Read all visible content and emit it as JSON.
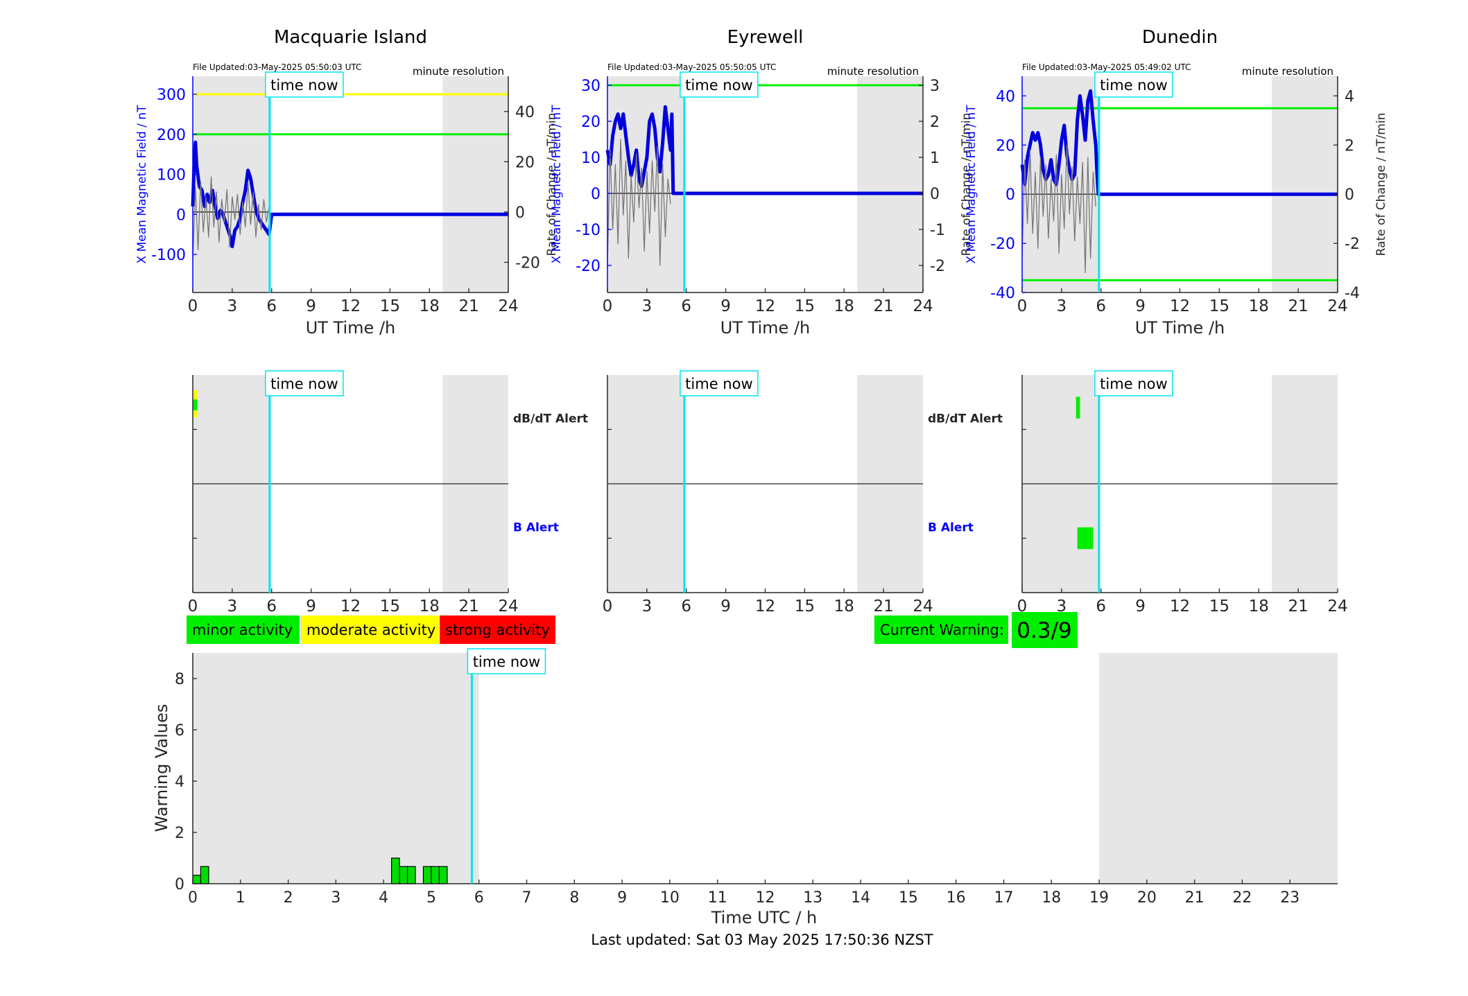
{
  "chart_data": [
    {
      "type": "line",
      "title": "Macquarie Island",
      "file_updated": "File Updated:03-May-2025 05:50:03 UTC",
      "resolution": "minute resolution",
      "xlabel": "UT Time /h",
      "ylabel_left": "X Mean Magnetic Field / nT",
      "ylabel_right": "Rate of Change / nT/min",
      "xlim": [
        0,
        24
      ],
      "xticks": [
        0,
        3,
        6,
        9,
        12,
        15,
        18,
        21,
        24
      ],
      "ylim_left": [
        -195,
        345
      ],
      "yticks_left": [
        -100,
        0,
        100,
        200,
        300
      ],
      "ylim_right": [
        -32,
        54
      ],
      "yticks_right": [
        -20,
        0,
        20,
        40
      ],
      "thresholds": [
        {
          "value": 300,
          "color": "#ffff00"
        },
        {
          "value": 200,
          "color": "#00ee00"
        }
      ],
      "night_shading": [
        [
          0,
          5.85
        ],
        [
          19,
          24
        ]
      ],
      "time_now": 5.85,
      "time_now_label": "time now",
      "series": [
        {
          "axis": "left",
          "color": "#0000dd",
          "x": [
            0,
            0.1,
            0.2,
            0.3,
            0.5,
            0.7,
            0.9,
            1.1,
            1.3,
            1.5,
            1.7,
            1.9,
            2.1,
            2.3,
            2.5,
            2.7,
            2.9,
            3.0,
            3.2,
            3.4,
            3.6,
            3.8,
            4.0,
            4.2,
            4.4,
            4.6,
            4.8,
            5.0,
            5.2,
            5.4,
            5.6,
            5.8,
            6.0,
            24
          ],
          "y": [
            20,
            120,
            180,
            120,
            70,
            60,
            20,
            50,
            30,
            60,
            20,
            -10,
            10,
            0,
            -20,
            -40,
            -60,
            -80,
            -40,
            -30,
            -10,
            30,
            60,
            110,
            90,
            50,
            10,
            -10,
            -20,
            -30,
            -40,
            -50,
            0,
            0
          ]
        },
        {
          "axis": "right",
          "color": "#777777",
          "x": [
            0,
            0.2,
            0.4,
            0.6,
            0.8,
            1.0,
            1.2,
            1.4,
            1.6,
            1.8,
            2.0,
            2.2,
            2.4,
            2.6,
            2.8,
            3.0,
            3.2,
            3.4,
            3.6,
            3.8,
            4.0,
            4.2,
            4.4,
            4.6,
            4.8,
            5.0,
            5.2,
            5.4,
            5.6,
            5.8
          ],
          "y": [
            -20,
            10,
            -15,
            12,
            -8,
            6,
            -10,
            14,
            -6,
            8,
            -12,
            5,
            -4,
            9,
            -14,
            6,
            -3,
            7,
            -9,
            4,
            -6,
            12,
            -5,
            8,
            -10,
            3,
            -7,
            5,
            -4,
            2
          ]
        }
      ]
    },
    {
      "type": "line",
      "title": "Eyrewell",
      "file_updated": "File Updated:03-May-2025 05:50:05 UTC",
      "resolution": "minute resolution",
      "xlabel": "UT Time /h",
      "ylabel_left": "X Mean Magnetic Field / nT",
      "ylabel_right": "Rate of Change / nT/min",
      "xlim": [
        0,
        24
      ],
      "xticks": [
        0,
        3,
        6,
        9,
        12,
        15,
        18,
        21,
        24
      ],
      "ylim_left": [
        -27.5,
        32.5
      ],
      "yticks_left": [
        -20,
        -10,
        0,
        10,
        20,
        30
      ],
      "ylim_right": [
        -2.75,
        3.25
      ],
      "yticks_right": [
        -2,
        -1,
        0,
        1,
        2,
        3
      ],
      "thresholds": [
        {
          "value": 30,
          "color": "#00ee00"
        }
      ],
      "night_shading": [
        [
          0,
          5.85
        ],
        [
          19,
          24
        ]
      ],
      "time_now": 5.85,
      "time_now_label": "time now",
      "series": [
        {
          "axis": "left",
          "color": "#0000dd",
          "x": [
            0,
            0.2,
            0.4,
            0.6,
            0.8,
            1.0,
            1.2,
            1.4,
            1.6,
            1.8,
            2.0,
            2.2,
            2.4,
            2.6,
            2.8,
            3.0,
            3.2,
            3.4,
            3.6,
            3.8,
            4.0,
            4.2,
            4.4,
            4.6,
            4.8,
            4.9,
            5.0,
            24
          ],
          "y": [
            12,
            8,
            16,
            20,
            22,
            18,
            22,
            16,
            10,
            5,
            8,
            12,
            4,
            2,
            6,
            10,
            20,
            22,
            18,
            10,
            6,
            14,
            24,
            18,
            12,
            22,
            0,
            0
          ]
        },
        {
          "axis": "right",
          "color": "#777777",
          "x": [
            0,
            0.2,
            0.4,
            0.6,
            0.8,
            1.0,
            1.2,
            1.4,
            1.6,
            1.8,
            2.0,
            2.2,
            2.4,
            2.6,
            2.8,
            3.0,
            3.2,
            3.4,
            3.6,
            3.8,
            4.0,
            4.2,
            4.4,
            4.6,
            4.8
          ],
          "y": [
            -2,
            1.2,
            -1,
            0.8,
            -1.4,
            1.5,
            -0.6,
            0.9,
            -1.8,
            0.5,
            -0.8,
            1.1,
            -0.4,
            0.7,
            -1.6,
            0.6,
            -1.1,
            0.9,
            -0.5,
            1.3,
            -2,
            0.8,
            -1.2,
            0.4,
            -0.3
          ]
        }
      ]
    },
    {
      "type": "line",
      "title": "Dunedin",
      "file_updated": "File Updated:03-May-2025 05:49:02 UTC",
      "resolution": "minute resolution",
      "xlabel": "UT Time /h",
      "ylabel_left": "X Mean Magnetic Field / nT",
      "ylabel_right": "Rate of Change / nT/min",
      "xlim": [
        0,
        24
      ],
      "xticks": [
        0,
        3,
        6,
        9,
        12,
        15,
        18,
        21,
        24
      ],
      "ylim_left": [
        -40,
        48
      ],
      "yticks_left": [
        -40,
        -20,
        0,
        20,
        40
      ],
      "ylim_right": [
        -4,
        4.8
      ],
      "yticks_right": [
        -4,
        -2,
        0,
        2,
        4
      ],
      "thresholds": [
        {
          "value": 35,
          "color": "#00ee00"
        },
        {
          "value": -35,
          "color": "#00ee00"
        }
      ],
      "night_shading": [
        [
          0,
          5.85
        ],
        [
          19,
          24
        ]
      ],
      "time_now": 5.85,
      "time_now_label": "time now",
      "series": [
        {
          "axis": "left",
          "color": "#0000dd",
          "x": [
            0,
            0.2,
            0.4,
            0.6,
            0.8,
            1.0,
            1.2,
            1.4,
            1.6,
            1.8,
            2.0,
            2.2,
            2.4,
            2.6,
            2.8,
            3.0,
            3.2,
            3.4,
            3.6,
            3.8,
            4.0,
            4.2,
            4.4,
            4.6,
            4.8,
            5.0,
            5.2,
            5.4,
            5.6,
            5.7,
            5.8,
            24
          ],
          "y": [
            12,
            4,
            15,
            20,
            25,
            22,
            25,
            20,
            10,
            6,
            8,
            14,
            6,
            4,
            12,
            22,
            28,
            16,
            10,
            6,
            8,
            30,
            40,
            32,
            22,
            38,
            42,
            30,
            20,
            8,
            0,
            0
          ]
        },
        {
          "axis": "right",
          "color": "#777777",
          "x": [
            0,
            0.2,
            0.4,
            0.6,
            0.8,
            1.0,
            1.2,
            1.4,
            1.6,
            1.8,
            2.0,
            2.2,
            2.4,
            2.6,
            2.8,
            3.0,
            3.2,
            3.4,
            3.6,
            3.8,
            4.0,
            4.2,
            4.4,
            4.6,
            4.8,
            5.0,
            5.2,
            5.4,
            5.6
          ],
          "y": [
            -2.5,
            1.4,
            -1.2,
            1.8,
            -1.6,
            0.9,
            -2.2,
            1.5,
            -0.9,
            1.2,
            -1.8,
            0.6,
            -1.1,
            1.6,
            -2.4,
            0.8,
            -1.4,
            2,
            -0.8,
            1.1,
            -1.9,
            0.7,
            -1.2,
            1.3,
            -3.2,
            1.5,
            -2.6,
            0.9,
            -0.5
          ]
        }
      ]
    },
    {
      "type": "bar",
      "title": "",
      "right_label_top": "dB/dT Alert",
      "right_label_bottom": "B Alert",
      "xlim": [
        0,
        24
      ],
      "xticks": [
        0,
        3,
        6,
        9,
        12,
        15,
        18,
        21,
        24
      ],
      "night_shading": [
        [
          0,
          5.85
        ],
        [
          19,
          24
        ]
      ],
      "time_now": 5.85,
      "time_now_label": "time now",
      "alerts": [
        {
          "row": "dBdt",
          "start": 0,
          "end": 0.35,
          "level": "moderate",
          "color": "#ffff00",
          "top": 0.72,
          "bottom": 0.22
        },
        {
          "row": "dBdt",
          "start": 0,
          "end": 0.35,
          "level": "minor",
          "color": "#00ee00",
          "top": 0.55,
          "bottom": 0.35
        }
      ]
    },
    {
      "type": "bar",
      "title": "",
      "right_label_top": "dB/dT Alert",
      "right_label_bottom": "B Alert",
      "xlim": [
        0,
        24
      ],
      "xticks": [
        0,
        3,
        6,
        9,
        12,
        15,
        18,
        21,
        24
      ],
      "night_shading": [
        [
          0,
          5.85
        ],
        [
          19,
          24
        ]
      ],
      "time_now": 5.85,
      "time_now_label": "time now",
      "alerts": []
    },
    {
      "type": "bar",
      "title": "",
      "xlim": [
        0,
        24
      ],
      "xticks": [
        0,
        3,
        6,
        9,
        12,
        15,
        18,
        21,
        24
      ],
      "night_shading": [
        [
          0,
          5.85
        ],
        [
          19,
          24
        ]
      ],
      "time_now": 5.85,
      "time_now_label": "time now",
      "alerts": [
        {
          "row": "dBdt",
          "start": 4.1,
          "end": 4.4,
          "level": "minor",
          "color": "#00ee00",
          "top": 0.6,
          "bottom": 0.2
        },
        {
          "row": "B",
          "start": 4.2,
          "end": 5.4,
          "level": "minor",
          "color": "#00ee00",
          "top": 0.2,
          "bottom": -0.2
        }
      ]
    },
    {
      "type": "bar",
      "title": "",
      "xlabel": "Time UTC / h",
      "ylabel": "Warning Values",
      "xlim": [
        0,
        24
      ],
      "xticks": [
        0,
        1,
        2,
        3,
        4,
        5,
        6,
        7,
        8,
        9,
        10,
        11,
        12,
        13,
        14,
        15,
        16,
        17,
        18,
        19,
        20,
        21,
        22,
        23
      ],
      "ylim": [
        0,
        9
      ],
      "yticks": [
        0,
        2,
        4,
        6,
        8
      ],
      "night_shading": [
        [
          0,
          6
        ],
        [
          19,
          24
        ]
      ],
      "time_now": 5.85,
      "time_now_label": "time now",
      "bar_width": 0.1667,
      "bar_color": "#00dd00",
      "x": [
        0,
        0.1667,
        4.1667,
        4.3333,
        4.5,
        4.8333,
        5.0,
        5.1667
      ],
      "values": [
        0.33,
        0.67,
        1.0,
        0.67,
        0.67,
        0.67,
        0.67,
        0.67
      ]
    }
  ],
  "legend": {
    "minor": {
      "label": "minor activity",
      "color": "#00ee00"
    },
    "moderate": {
      "label": "moderate activity",
      "color": "#ffff00"
    },
    "strong": {
      "label": "strong activity",
      "color": "#ff0000"
    }
  },
  "current_warning": {
    "label": "Current Warning:",
    "value": "0.3/9",
    "color": "#00ee00"
  },
  "last_updated": "Last updated: Sat 03 May 2025 17:50:36 NZST"
}
